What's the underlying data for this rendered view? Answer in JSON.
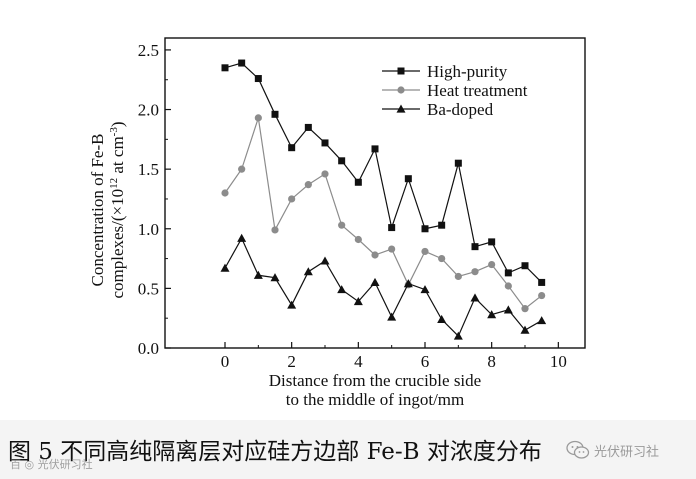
{
  "chart_data": {
    "type": "line",
    "xlabel_line1": "Distance from the crucible side",
    "xlabel_line2": "to the middle of ingot/mm",
    "ylabel_line1": "Concentration of Fe-B",
    "ylabel_line2_prefix": "complexes/(×10",
    "ylabel_line2_exp1": "12",
    "ylabel_line2_mid": " at cm",
    "ylabel_line2_exp2": "-3",
    "ylabel_line2_suffix": ")",
    "xlim": [
      -1.8,
      10.8
    ],
    "ylim": [
      0,
      2.6
    ],
    "xticks": [
      0,
      2,
      4,
      6,
      8,
      10
    ],
    "yticks": [
      0.0,
      0.5,
      1.0,
      1.5,
      2.0,
      2.5
    ],
    "ytick_labels": [
      "0.0",
      "0.5",
      "1.0",
      "1.5",
      "2.0",
      "2.5"
    ],
    "grid": false,
    "legend_position": "top-right",
    "series": [
      {
        "name": "High-purity",
        "marker": "square",
        "x": [
          0,
          0.5,
          1.0,
          1.5,
          2.0,
          2.5,
          3.0,
          3.5,
          4.0,
          4.5,
          5.0,
          5.5,
          6.0,
          6.5,
          7.0,
          7.5,
          8.0,
          8.5,
          9.0,
          9.5
        ],
        "y": [
          2.35,
          2.39,
          2.26,
          1.96,
          1.68,
          1.85,
          1.72,
          1.57,
          1.39,
          1.67,
          1.01,
          1.42,
          1.0,
          1.03,
          1.55,
          0.85,
          0.89,
          0.63,
          0.69,
          0.55
        ]
      },
      {
        "name": "Heat treatment",
        "marker": "circle",
        "x": [
          0,
          0.5,
          1.0,
          1.5,
          2.0,
          2.5,
          3.0,
          3.5,
          4.0,
          4.5,
          5.0,
          5.5,
          6.0,
          6.5,
          7.0,
          7.5,
          8.0,
          8.5,
          9.0,
          9.5
        ],
        "y": [
          1.3,
          1.5,
          1.93,
          0.99,
          1.25,
          1.37,
          1.46,
          1.03,
          0.91,
          0.78,
          0.83,
          0.53,
          0.81,
          0.75,
          0.6,
          0.64,
          0.7,
          0.52,
          0.33,
          0.44
        ]
      },
      {
        "name": "Ba-doped",
        "marker": "triangle",
        "x": [
          0,
          0.5,
          1.0,
          1.5,
          2.0,
          2.5,
          3.0,
          3.5,
          4.0,
          4.5,
          5.0,
          5.5,
          6.0,
          6.5,
          7.0,
          7.5,
          8.0,
          8.5,
          9.0,
          9.5
        ],
        "y": [
          0.67,
          0.92,
          0.61,
          0.59,
          0.36,
          0.64,
          0.73,
          0.49,
          0.39,
          0.55,
          0.26,
          0.54,
          0.49,
          0.24,
          0.1,
          0.42,
          0.28,
          0.32,
          0.15,
          0.23
        ]
      }
    ]
  },
  "colors": {
    "series": [
      "#111111",
      "#8c8c8c",
      "#111111"
    ],
    "axis": "#111111",
    "caption_band": "#f4f4f4"
  },
  "caption": {
    "text": "图 5   不同高纯隔离层对应硅方边部 Fe-B 对浓度分布"
  },
  "watermarks": {
    "left": "百 ◎ 光伏研习社",
    "right_icon": "wechat-icon",
    "right_text": "光伏研习社"
  }
}
